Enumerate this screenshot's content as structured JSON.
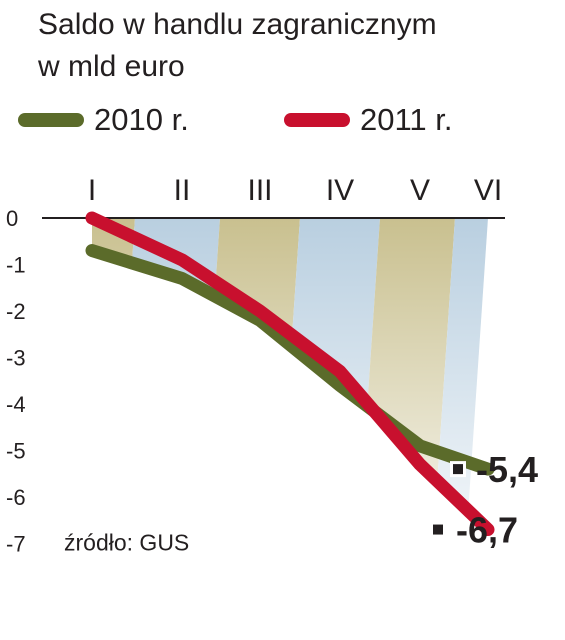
{
  "title": {
    "line1": "Saldo w handlu zagranicznym",
    "line2": "w mld euro"
  },
  "source": "źródło: GUS",
  "colors": {
    "series_2010": "#5b6b2a",
    "series_2011": "#c8102e",
    "band_olive": "#c9c08f",
    "band_blue": "#b9cfe0"
  },
  "chart_data": {
    "type": "line",
    "x": [
      "I",
      "II",
      "III",
      "IV",
      "V",
      "VI"
    ],
    "ylim": [
      -7,
      0
    ],
    "yticks": [
      "0",
      "-1",
      "-2",
      "-3",
      "-4",
      "-5",
      "-6",
      "-7"
    ],
    "ytick_values": [
      0,
      -1,
      -2,
      -3,
      -4,
      -5,
      -6,
      -7
    ],
    "series": [
      {
        "name": "2010 r.",
        "values": [
          -0.7,
          -1.3,
          -2.2,
          -3.6,
          -4.9,
          -5.4
        ],
        "end_label": "-5,4"
      },
      {
        "name": "2011 r.",
        "values": [
          0.0,
          -0.9,
          -2.0,
          -3.3,
          -5.3,
          -6.7
        ],
        "end_label": "-6,7"
      }
    ]
  }
}
